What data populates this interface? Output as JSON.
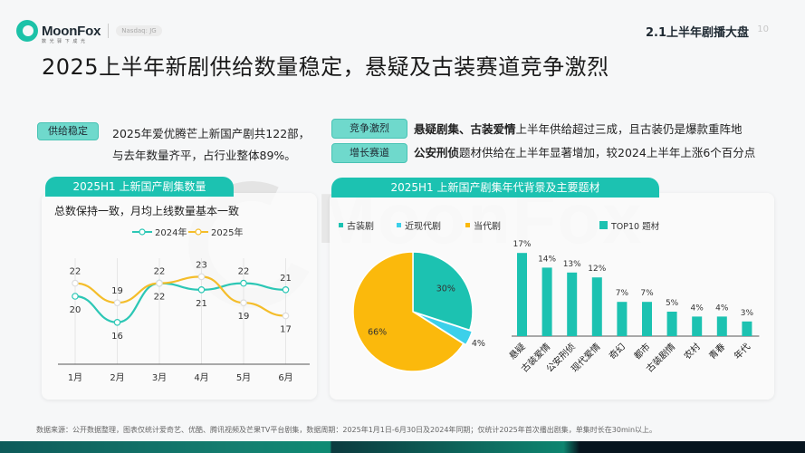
{
  "header": {
    "brand": "MoonFox",
    "brand_sub": "数 光 驿 下 成 光",
    "ticker": "Nasdaq: JG",
    "section": "2.1上半年剧播大盘",
    "page": "10"
  },
  "title": "2025上半年新剧供给数量稳定，悬疑及古装赛道竞争激烈",
  "summary": {
    "left": {
      "tag": "供给稳定",
      "line1": "2025年爱优腾芒上新国产剧共122部，",
      "line2": "与去年数量齐平，占行业整体89%。"
    },
    "right": [
      {
        "tag": "竞争激烈",
        "bold": "悬疑剧集、古装爱情",
        "text": "上半年供给超过三成，且古装仍是爆款重阵地"
      },
      {
        "tag": "增长赛道",
        "bold": "公安刑侦",
        "text": "题材供给在上半年显著增加，较2024上半年上涨6个百分点"
      }
    ]
  },
  "left_panel": {
    "header": "2025H1  上新国产剧集数量",
    "subtitle": "总数保持一致，月均上线数量基本一致"
  },
  "right_panel": {
    "header": "2025H1  上新国产剧集年代背景及主要题材"
  },
  "colors": {
    "teal": "#1cc2b1",
    "cyan": "#3cd0ea",
    "yellow": "#fbb90c",
    "line2024": "#2cc7b5",
    "line2025": "#f4bd2a"
  },
  "chart_data": [
    {
      "type": "line",
      "title": "2025H1 上新国产剧集数量",
      "subtitle": "总数保持一致，月均上线数量基本一致",
      "categories": [
        "1月",
        "2月",
        "3月",
        "4月",
        "5月",
        "6月"
      ],
      "series": [
        {
          "name": "2024年",
          "values": [
            20,
            16,
            22,
            21,
            22,
            21
          ]
        },
        {
          "name": "2025年",
          "values": [
            22,
            19,
            22,
            23,
            19,
            17
          ]
        }
      ],
      "legend_position": "top",
      "grid": "vertical"
    },
    {
      "type": "pie",
      "title": "年代背景",
      "labels": [
        "古装剧",
        "近现代剧",
        "当代剧"
      ],
      "values": [
        30,
        4,
        66
      ],
      "value_labels": [
        "30%",
        "4%",
        "66%"
      ],
      "legend_position": "top"
    },
    {
      "type": "bar",
      "title": "TOP10 题材",
      "categories": [
        "悬疑",
        "古装爱情",
        "公安刑侦",
        "现代爱情",
        "奇幻",
        "都市",
        "古装剧情",
        "农村",
        "青春",
        "年代"
      ],
      "values": [
        17,
        14,
        13,
        12,
        7,
        7,
        5,
        4,
        4,
        3
      ],
      "value_labels": [
        "17%",
        "14%",
        "13%",
        "12%",
        "7%",
        "7%",
        "5%",
        "4%",
        "4%",
        "3%"
      ],
      "legend": "TOP10 题材",
      "ylabel": "%"
    }
  ],
  "footnote": "数据来源：公开数据整理，图表仅统计爱奇艺、优酷、腾讯视频及芒果TV平台剧集，数据周期：2025年1月1日-6月30日及2024年同期；仅统计2025年首次播出剧集，单集时长在30min以上。"
}
